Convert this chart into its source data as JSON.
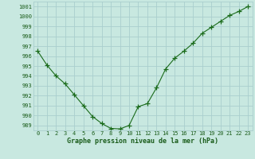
{
  "x": [
    0,
    1,
    2,
    3,
    4,
    5,
    6,
    7,
    8,
    9,
    10,
    11,
    12,
    13,
    14,
    15,
    16,
    17,
    18,
    19,
    20,
    21,
    22,
    23
  ],
  "y": [
    996.5,
    995.1,
    994.0,
    993.2,
    992.1,
    991.0,
    989.9,
    989.2,
    988.7,
    988.65,
    989.0,
    990.9,
    991.2,
    992.8,
    994.7,
    995.8,
    996.5,
    997.3,
    998.3,
    998.9,
    999.5,
    1000.1,
    1000.5,
    1001.0
  ],
  "line_color": "#1a6b1a",
  "marker": "+",
  "marker_color": "#1a6b1a",
  "bg_color": "#c8e8e0",
  "grid_color": "#aacece",
  "text_color": "#1a5c1a",
  "xlabel": "Graphe pression niveau de la mer (hPa)",
  "ylim": [
    988.5,
    1001.5
  ],
  "yticks": [
    989,
    990,
    991,
    992,
    993,
    994,
    995,
    996,
    997,
    998,
    999,
    1000,
    1001
  ],
  "xticks": [
    0,
    1,
    2,
    3,
    4,
    5,
    6,
    7,
    8,
    9,
    10,
    11,
    12,
    13,
    14,
    15,
    16,
    17,
    18,
    19,
    20,
    21,
    22,
    23
  ],
  "xlim": [
    -0.5,
    23.5
  ],
  "tick_fontsize": 5.0,
  "xlabel_fontsize": 6.0,
  "linewidth": 0.8,
  "markersize": 4.0,
  "markeredgewidth": 0.9
}
